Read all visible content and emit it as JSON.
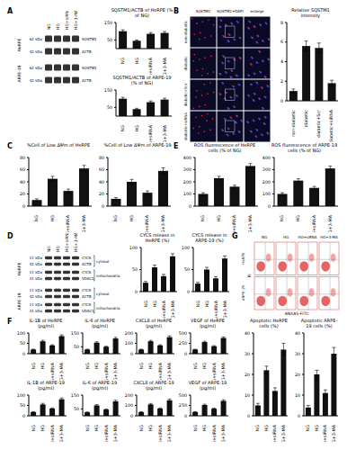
{
  "panel_labels": [
    "A",
    "B",
    "C",
    "D",
    "E",
    "F",
    "G"
  ],
  "blots": [
    {
      "lanes": [
        "NG",
        "HG",
        "HG+siRNA",
        "HG+3-MA"
      ],
      "cells": [
        {
          "name": "HeRPE",
          "rows": [
            {
              "name": "SQSTM1",
              "kda": "62 kDa"
            },
            {
              "name": "ACTB",
              "kda": "42 kDa"
            }
          ]
        },
        {
          "name": "ARPE-19",
          "rows": [
            {
              "name": "SQSTM1",
              "kda": "62 kDa"
            },
            {
              "name": "ACTB",
              "kda": "42 kDa"
            }
          ]
        }
      ]
    },
    {
      "lanes": [
        "NG",
        "HG",
        "HG+siRNA",
        "HG+3-MA"
      ],
      "cells": [
        {
          "name": "HeRPE",
          "fractions": [
            {
              "name": "cytosol",
              "rows": [
                {
                  "name": "CYCS",
                  "kda": "11 kDa"
                },
                {
                  "name": "ACTB",
                  "kda": "42 kDa"
                }
              ]
            },
            {
              "name": "mitochondria",
              "rows": [
                {
                  "name": "CYCS",
                  "kda": "11 kDa"
                },
                {
                  "name": "VDAC1",
                  "kda": "31 kDa"
                }
              ]
            }
          ]
        },
        {
          "name": "ARPE-19",
          "fractions": [
            {
              "name": "cytosol",
              "rows": [
                {
                  "name": "CYCS",
                  "kda": "11 kDa"
                },
                {
                  "name": "ACTB",
                  "kda": "42 kDa"
                }
              ]
            },
            {
              "name": "mitochondria",
              "rows": [
                {
                  "name": "CYCS",
                  "kda": "11 kDa"
                },
                {
                  "name": "VDAC1",
                  "kda": "31 kDa"
                }
              ]
            }
          ]
        }
      ]
    }
  ],
  "microscopy": {
    "columns": [
      "SQSTM1",
      "SQSTM1+DAPI",
      "enlarge"
    ],
    "rows": [
      "non-diabetic",
      "diabetic",
      "diabetic+Scr",
      "diabetic+siRNA"
    ]
  },
  "flow": {
    "columns": [
      "NG",
      "HG",
      "HG+siRNA",
      "HG+3-MA"
    ],
    "rows": [
      "HeRPE",
      "ARPE-19"
    ],
    "x_label": "ANXA5-FITC",
    "y_label": "PI"
  },
  "chart_data": [
    {
      "type": "bar",
      "title": "SQSTM1/ACTB of HeRPE (% of NG)",
      "categories": [
        "NG",
        "HG",
        "HG+siRNA",
        "HG+3-MA"
      ],
      "values": [
        100,
        45,
        85,
        90
      ],
      "errors": [
        8,
        5,
        7,
        8
      ],
      "color": "#111111",
      "ylim": [
        0,
        150
      ],
      "yticks": [
        0,
        50,
        100,
        150
      ]
    },
    {
      "type": "bar",
      "title": "SQSTM1/ACTB of ARPE-19 (% of NG)",
      "categories": [
        "NG",
        "HG",
        "HG+siRNA",
        "HG+3-MA"
      ],
      "values": [
        100,
        40,
        80,
        95
      ],
      "errors": [
        8,
        5,
        7,
        8
      ],
      "color": "#111111",
      "ylim": [
        0,
        150
      ],
      "yticks": [
        0,
        50,
        100,
        150
      ]
    },
    {
      "type": "bar",
      "title": "Relative SQSTM1 intensity",
      "categories": [
        "non-diabetic",
        "diabetic",
        "diabetic+Scr",
        "diabetic+siRNA"
      ],
      "values": [
        1,
        5.6,
        5.4,
        1.8
      ],
      "errors": [
        0.2,
        0.5,
        0.5,
        0.3
      ],
      "color": "#111111",
      "ylim": [
        0,
        8
      ],
      "yticks": [
        0,
        2,
        4,
        6,
        8
      ]
    },
    {
      "type": "bar",
      "title": "%Cell of Low ΔΨm of HeRPE",
      "categories": [
        "NG",
        "HG",
        "HG+siRNA",
        "HG+3-MA"
      ],
      "values": [
        10,
        45,
        25,
        62
      ],
      "errors": [
        2,
        4,
        3,
        5
      ],
      "color": "#111111",
      "ylim": [
        0,
        80
      ],
      "yticks": [
        0,
        20,
        40,
        60,
        80
      ]
    },
    {
      "type": "bar",
      "title": "%Cell of Low ΔΨm of ARPE-19",
      "categories": [
        "NG",
        "HG",
        "HG+siRNA",
        "HG+3-MA"
      ],
      "values": [
        12,
        40,
        22,
        58
      ],
      "errors": [
        2,
        4,
        3,
        5
      ],
      "color": "#111111",
      "ylim": [
        0,
        80
      ],
      "yticks": [
        0,
        20,
        40,
        60,
        80
      ]
    },
    {
      "type": "bar",
      "title": "CYCS release in HeRPE (%)",
      "categories": [
        "NG",
        "HG",
        "HG+siRNA",
        "HG+3-MA"
      ],
      "values": [
        20,
        55,
        35,
        80
      ],
      "errors": [
        3,
        5,
        4,
        6
      ],
      "color": "#111111",
      "ylim": [
        0,
        100
      ],
      "yticks": [
        0,
        50,
        100
      ]
    },
    {
      "type": "bar",
      "title": "CYCS release in ARPE-19 (%)",
      "categories": [
        "NG",
        "HG",
        "HG+siRNA",
        "HG+3-MA"
      ],
      "values": [
        18,
        50,
        30,
        75
      ],
      "errors": [
        3,
        5,
        4,
        6
      ],
      "color": "#111111",
      "ylim": [
        0,
        100
      ],
      "yticks": [
        0,
        50,
        100
      ]
    },
    {
      "type": "bar",
      "title": "ROS fluorescence of HeRPE cells (% of NG)",
      "categories": [
        "NG",
        "HG",
        "HG+siRNA",
        "HG+3-MA"
      ],
      "values": [
        100,
        230,
        160,
        330
      ],
      "errors": [
        10,
        15,
        12,
        20
      ],
      "color": "#111111",
      "ylim": [
        0,
        400
      ],
      "yticks": [
        0,
        100,
        200,
        300,
        400
      ]
    },
    {
      "type": "bar",
      "title": "ROS fluorescence of ARPE-19 cells (% of NG)",
      "categories": [
        "NG",
        "HG",
        "HG+siRNA",
        "HG+3-MA"
      ],
      "values": [
        100,
        210,
        150,
        310
      ],
      "errors": [
        10,
        15,
        12,
        20
      ],
      "color": "#111111",
      "ylim": [
        0,
        400
      ],
      "yticks": [
        0,
        100,
        200,
        300,
        400
      ]
    },
    {
      "type": "bar",
      "title": "IL-1B of HeRPE (pg/ml)",
      "categories": [
        "NG",
        "HG",
        "HG+siRNA",
        "HG+3-MA"
      ],
      "values": [
        20,
        60,
        40,
        85
      ],
      "errors": [
        2,
        5,
        3,
        6
      ],
      "color": "#111111",
      "ylim": [
        0,
        100
      ],
      "yticks": [
        0,
        50,
        100
      ]
    },
    {
      "type": "bar",
      "title": "IL-6 of HeRPE (pg/ml)",
      "categories": [
        "NG",
        "HG",
        "HG+siRNA",
        "HG+3-MA"
      ],
      "values": [
        30,
        80,
        50,
        110
      ],
      "errors": [
        3,
        6,
        4,
        8
      ],
      "color": "#111111",
      "ylim": [
        0,
        150
      ],
      "yticks": [
        0,
        50,
        100,
        150
      ]
    },
    {
      "type": "bar",
      "title": "CXCL8 of HeRPE (pg/ml)",
      "categories": [
        "NG",
        "HG",
        "HG+siRNA",
        "HG+3-MA"
      ],
      "values": [
        40,
        120,
        80,
        160
      ],
      "errors": [
        4,
        9,
        6,
        12
      ],
      "color": "#111111",
      "ylim": [
        0,
        200
      ],
      "yticks": [
        0,
        100,
        200
      ]
    },
    {
      "type": "bar",
      "title": "VEGF of HeRPE (pg/ml)",
      "categories": [
        "NG",
        "HG",
        "HG+siRNA",
        "HG+3-MA"
      ],
      "values": [
        100,
        280,
        180,
        380
      ],
      "errors": [
        8,
        20,
        14,
        25
      ],
      "color": "#111111",
      "ylim": [
        0,
        500
      ],
      "yticks": [
        0,
        250,
        500
      ]
    },
    {
      "type": "bar",
      "title": "IL-1B of ARPE-19 (pg/ml)",
      "categories": [
        "NG",
        "HG",
        "HG+siRNA",
        "HG+3-MA"
      ],
      "values": [
        18,
        55,
        35,
        80
      ],
      "errors": [
        2,
        5,
        3,
        6
      ],
      "color": "#111111",
      "ylim": [
        0,
        100
      ],
      "yticks": [
        0,
        50,
        100
      ]
    },
    {
      "type": "bar",
      "title": "IL-6 of ARPE-19 (pg/ml)",
      "categories": [
        "NG",
        "HG",
        "HG+siRNA",
        "HG+3-MA"
      ],
      "values": [
        25,
        75,
        45,
        105
      ],
      "errors": [
        3,
        6,
        4,
        8
      ],
      "color": "#111111",
      "ylim": [
        0,
        150
      ],
      "yticks": [
        0,
        50,
        100,
        150
      ]
    },
    {
      "type": "bar",
      "title": "CXCL8 of ARPE-19 (pg/ml)",
      "categories": [
        "NG",
        "HG",
        "HG+siRNA",
        "HG+3-MA"
      ],
      "values": [
        35,
        110,
        70,
        150
      ],
      "errors": [
        4,
        9,
        6,
        12
      ],
      "color": "#111111",
      "ylim": [
        0,
        200
      ],
      "yticks": [
        0,
        100,
        200
      ]
    },
    {
      "type": "bar",
      "title": "VEGF of ARPE-19 (pg/ml)",
      "categories": [
        "NG",
        "HG",
        "HG+siRNA",
        "HG+3-MA"
      ],
      "values": [
        90,
        260,
        170,
        360
      ],
      "errors": [
        8,
        20,
        14,
        25
      ],
      "color": "#111111",
      "ylim": [
        0,
        500
      ],
      "yticks": [
        0,
        250,
        500
      ]
    },
    {
      "type": "bar",
      "title": "Apoptotic HeRPE cells (%)",
      "categories": [
        "NG",
        "HG",
        "HG+siRNA",
        "HG+3-MA"
      ],
      "values": [
        5,
        22,
        12,
        32
      ],
      "errors": [
        1,
        2,
        1.5,
        3
      ],
      "color": "#111111",
      "ylim": [
        0,
        40
      ],
      "yticks": [
        0,
        10,
        20,
        30,
        40
      ]
    },
    {
      "type": "bar",
      "title": "Apoptotic ARPE-19 cells (%)",
      "categories": [
        "NG",
        "HG",
        "HG+siRNA",
        "HG+3-MA"
      ],
      "values": [
        4,
        20,
        11,
        30
      ],
      "errors": [
        1,
        2,
        1.5,
        3
      ],
      "color": "#111111",
      "ylim": [
        0,
        40
      ],
      "yticks": [
        0,
        10,
        20,
        30,
        40
      ]
    }
  ]
}
